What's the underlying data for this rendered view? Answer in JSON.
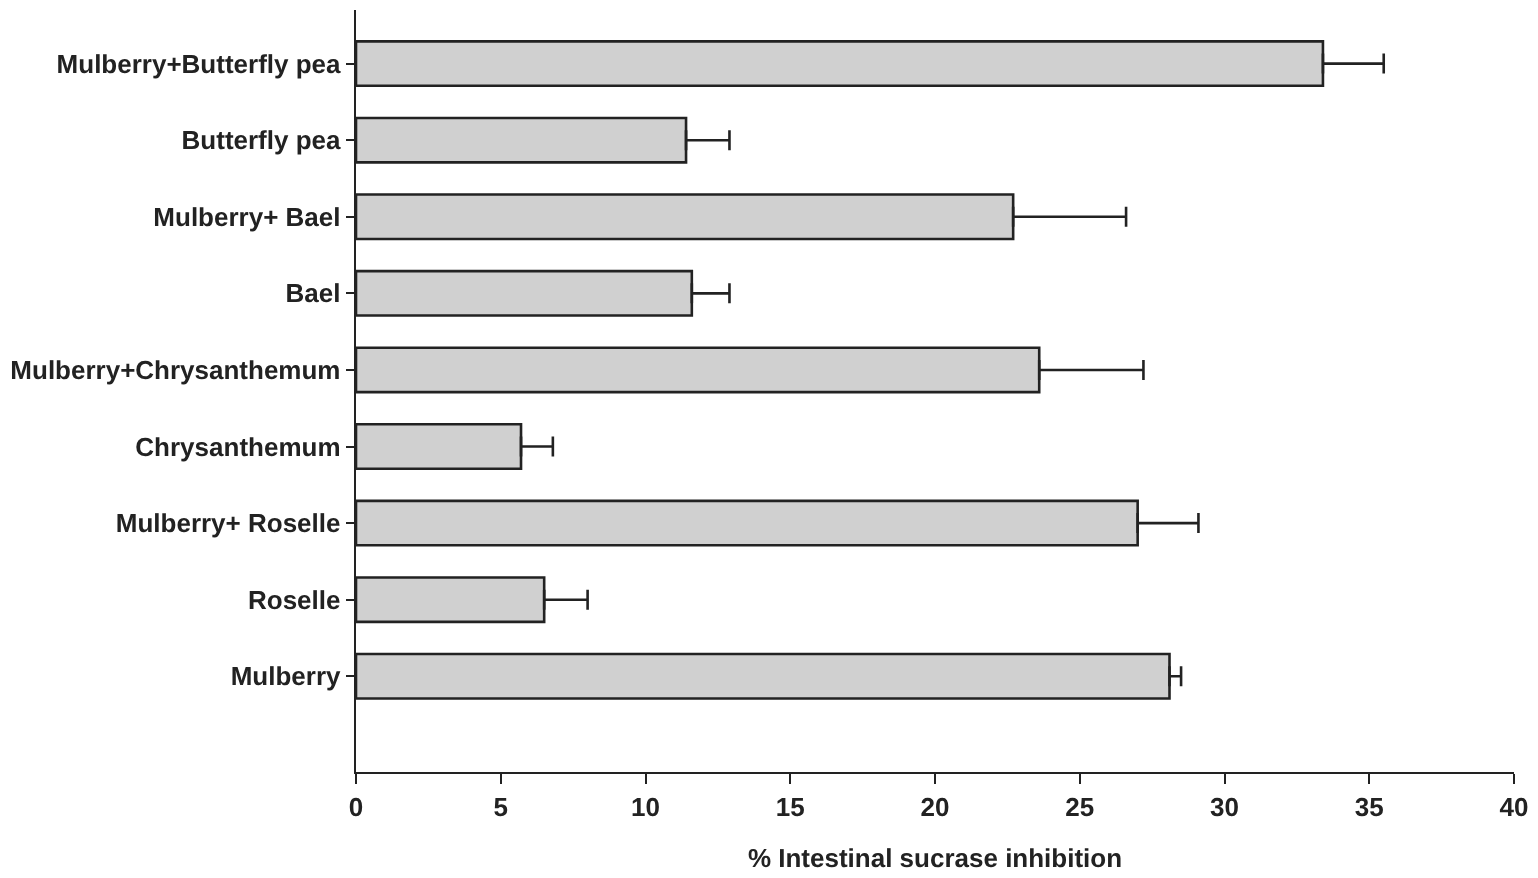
{
  "chart_data": {
    "type": "bar",
    "orientation": "horizontal",
    "xlabel": "% Intestinal sucrase inhibition",
    "categories": [
      "Mulberry+Butterfly pea",
      "Butterfly pea",
      "Mulberry+ Bael",
      "Bael",
      "Mulberry+Chrysanthemum",
      "Chrysanthemum",
      "Mulberry+ Roselle",
      "Roselle",
      "Mulberry"
    ],
    "values": [
      33.4,
      11.4,
      22.7,
      11.6,
      23.6,
      5.7,
      27.0,
      6.5,
      28.1
    ],
    "errors": [
      [
        33.4,
        35.5
      ],
      [
        11.4,
        12.9
      ],
      [
        22.7,
        26.6
      ],
      [
        11.6,
        12.9
      ],
      [
        23.6,
        27.2
      ],
      [
        5.7,
        6.8
      ],
      [
        27.0,
        29.1
      ],
      [
        6.5,
        8.0
      ],
      [
        28.1,
        28.5
      ]
    ],
    "color": "#d0d0d0",
    "xlim": [
      0,
      40
    ],
    "xticks": [
      0,
      5,
      10,
      15,
      20,
      25,
      30,
      35,
      40
    ]
  }
}
